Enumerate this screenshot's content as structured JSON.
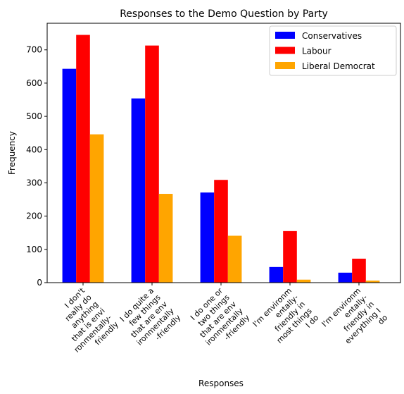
{
  "chart_data": {
    "type": "bar",
    "title": "Responses to the Demo Question by Party",
    "xlabel": "Responses",
    "ylabel": "Frequency",
    "ylim": [
      0,
      780
    ],
    "yticks": [
      0,
      100,
      200,
      300,
      400,
      500,
      600,
      700
    ],
    "grid": false,
    "legend_position": "top-right",
    "categories": [
      [
        "I don't",
        "really do",
        "anything",
        "that is envi",
        "ronmentally-",
        "friendly"
      ],
      [
        "I do quite a",
        "few things",
        "that are env",
        "ironmentally",
        "-friendly"
      ],
      [
        "I do one or",
        "two things",
        "that are env",
        "ironmentally",
        "-friendly"
      ],
      [
        "I'm environm",
        "entally-",
        "friendly in",
        "most things",
        "I do"
      ],
      [
        "I'm environm",
        "entally-",
        "friendly in",
        "everything I",
        "do"
      ]
    ],
    "series": [
      {
        "name": "Conservatives",
        "color": "#0000ff",
        "values": [
          643,
          554,
          271,
          47,
          30
        ]
      },
      {
        "name": "Labour",
        "color": "#ff0000",
        "values": [
          745,
          713,
          309,
          155,
          72
        ]
      },
      {
        "name": "Liberal Democrat",
        "color": "#ffa500",
        "values": [
          446,
          267,
          141,
          9,
          6
        ]
      }
    ]
  }
}
